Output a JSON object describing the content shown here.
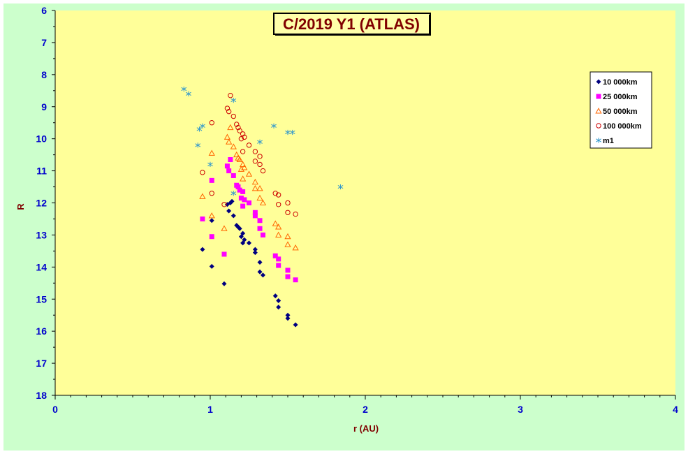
{
  "chart_data": {
    "type": "scatter",
    "title": "C/2019 Y1 (ATLAS)",
    "xlabel": "r (AU)",
    "ylabel": "R",
    "xlim": [
      0,
      4
    ],
    "ylim": [
      6,
      18
    ],
    "y_inverted": true,
    "x_ticks": [
      0,
      1,
      2,
      3,
      4
    ],
    "y_ticks": [
      6,
      7,
      8,
      9,
      10,
      11,
      12,
      13,
      14,
      15,
      16,
      17,
      18
    ],
    "grid": false,
    "legend_position": "top-right",
    "colors": {
      "outer_background": "#ccffcc",
      "plot_background": "#ffff99",
      "axis": "#000000",
      "tick_label": "#0000cc",
      "axis_title": "#800000",
      "title": "#800000"
    },
    "series": [
      {
        "name": "10 000km",
        "marker": "diamond",
        "color": "#000080",
        "points": [
          [
            0.95,
            13.45
          ],
          [
            1.01,
            13.98
          ],
          [
            1.01,
            12.55
          ],
          [
            1.09,
            14.52
          ],
          [
            1.11,
            12.05
          ],
          [
            1.12,
            12.25
          ],
          [
            1.13,
            12.0
          ],
          [
            1.14,
            11.95
          ],
          [
            1.15,
            12.4
          ],
          [
            1.17,
            12.7
          ],
          [
            1.18,
            12.75
          ],
          [
            1.19,
            12.8
          ],
          [
            1.2,
            13.05
          ],
          [
            1.21,
            12.95
          ],
          [
            1.21,
            13.25
          ],
          [
            1.22,
            13.15
          ],
          [
            1.25,
            13.25
          ],
          [
            1.29,
            13.45
          ],
          [
            1.29,
            13.55
          ],
          [
            1.32,
            13.85
          ],
          [
            1.32,
            14.15
          ],
          [
            1.34,
            14.25
          ],
          [
            1.42,
            14.9
          ],
          [
            1.44,
            15.05
          ],
          [
            1.44,
            15.25
          ],
          [
            1.5,
            15.5
          ],
          [
            1.5,
            15.6
          ],
          [
            1.55,
            15.8
          ]
        ]
      },
      {
        "name": "25 000km",
        "marker": "square",
        "color": "#ff00ff",
        "points": [
          [
            0.95,
            12.5
          ],
          [
            1.01,
            11.3
          ],
          [
            1.01,
            13.05
          ],
          [
            1.09,
            13.6
          ],
          [
            1.11,
            10.85
          ],
          [
            1.12,
            11.0
          ],
          [
            1.13,
            10.65
          ],
          [
            1.15,
            11.15
          ],
          [
            1.17,
            11.45
          ],
          [
            1.18,
            11.5
          ],
          [
            1.19,
            11.6
          ],
          [
            1.2,
            11.85
          ],
          [
            1.21,
            11.65
          ],
          [
            1.21,
            12.1
          ],
          [
            1.22,
            11.9
          ],
          [
            1.25,
            12.0
          ],
          [
            1.29,
            12.3
          ],
          [
            1.29,
            12.4
          ],
          [
            1.32,
            12.55
          ],
          [
            1.32,
            12.8
          ],
          [
            1.34,
            13.0
          ],
          [
            1.42,
            13.65
          ],
          [
            1.44,
            13.75
          ],
          [
            1.44,
            13.95
          ],
          [
            1.5,
            14.1
          ],
          [
            1.5,
            14.3
          ],
          [
            1.55,
            14.4
          ]
        ]
      },
      {
        "name": "50 000km",
        "marker": "triangle",
        "color": "#ff6600",
        "points": [
          [
            0.95,
            11.8
          ],
          [
            1.01,
            10.45
          ],
          [
            1.01,
            12.4
          ],
          [
            1.09,
            12.8
          ],
          [
            1.11,
            9.95
          ],
          [
            1.12,
            10.1
          ],
          [
            1.13,
            9.65
          ],
          [
            1.15,
            10.25
          ],
          [
            1.17,
            10.5
          ],
          [
            1.18,
            10.6
          ],
          [
            1.19,
            10.65
          ],
          [
            1.2,
            10.95
          ],
          [
            1.21,
            10.8
          ],
          [
            1.21,
            11.25
          ],
          [
            1.22,
            10.9
          ],
          [
            1.25,
            11.1
          ],
          [
            1.29,
            11.35
          ],
          [
            1.29,
            11.55
          ],
          [
            1.32,
            11.55
          ],
          [
            1.32,
            11.85
          ],
          [
            1.34,
            12.0
          ],
          [
            1.42,
            12.65
          ],
          [
            1.44,
            12.75
          ],
          [
            1.44,
            13.0
          ],
          [
            1.5,
            13.05
          ],
          [
            1.5,
            13.3
          ],
          [
            1.55,
            13.4
          ]
        ]
      },
      {
        "name": "100 000km",
        "marker": "circle",
        "color": "#cc0000",
        "points": [
          [
            0.95,
            11.05
          ],
          [
            1.01,
            9.5
          ],
          [
            1.01,
            11.7
          ],
          [
            1.09,
            12.05
          ],
          [
            1.11,
            9.05
          ],
          [
            1.12,
            9.15
          ],
          [
            1.13,
            8.65
          ],
          [
            1.15,
            9.3
          ],
          [
            1.17,
            9.55
          ],
          [
            1.18,
            9.65
          ],
          [
            1.19,
            9.75
          ],
          [
            1.2,
            10.0
          ],
          [
            1.21,
            9.85
          ],
          [
            1.21,
            10.4
          ],
          [
            1.22,
            9.95
          ],
          [
            1.25,
            10.2
          ],
          [
            1.29,
            10.4
          ],
          [
            1.29,
            10.7
          ],
          [
            1.32,
            10.55
          ],
          [
            1.32,
            10.8
          ],
          [
            1.34,
            11.0
          ],
          [
            1.42,
            11.7
          ],
          [
            1.44,
            11.75
          ],
          [
            1.44,
            12.05
          ],
          [
            1.5,
            12.0
          ],
          [
            1.5,
            12.3
          ],
          [
            1.55,
            12.35
          ]
        ]
      },
      {
        "name": "m1",
        "marker": "asterisk",
        "color": "#3399cc",
        "points": [
          [
            0.83,
            8.45
          ],
          [
            0.86,
            8.6
          ],
          [
            0.92,
            10.2
          ],
          [
            0.93,
            9.7
          ],
          [
            0.95,
            9.6
          ],
          [
            1.0,
            10.8
          ],
          [
            1.15,
            11.7
          ],
          [
            1.15,
            8.8
          ],
          [
            1.32,
            10.1
          ],
          [
            1.41,
            9.6
          ],
          [
            1.5,
            9.8
          ],
          [
            1.53,
            9.8
          ],
          [
            1.84,
            11.5
          ]
        ]
      }
    ]
  }
}
